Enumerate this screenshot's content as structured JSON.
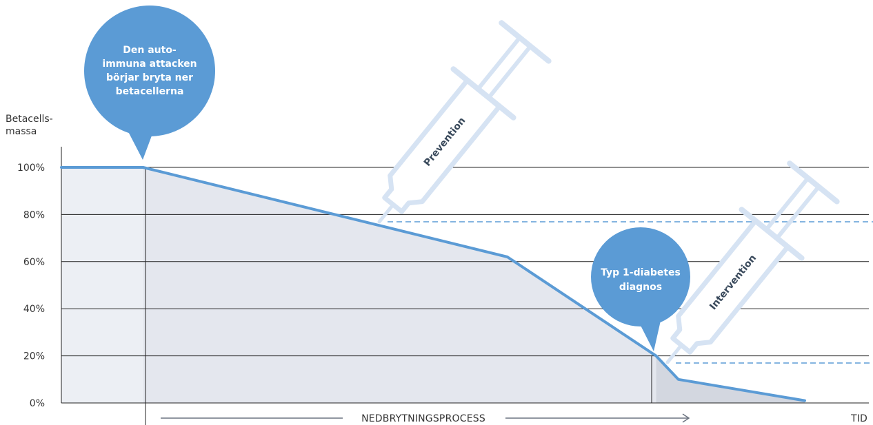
{
  "y_axis": {
    "title_line1": "Betacells-",
    "title_line2": "massa",
    "ticks": [
      "100%",
      "80%",
      "60%",
      "40%",
      "20%",
      "0%"
    ]
  },
  "x_axis": {
    "process_label": "NEDBRYTNINGSPROCESS",
    "end_label": "TID"
  },
  "bubbles": {
    "attack": {
      "line1": "Den auto-",
      "line2": "immuna attacken",
      "line3": "börjar bryta ner",
      "line4": "betacellerna"
    },
    "diagnosis": {
      "line1": "Typ 1-diabetes",
      "line2": "diagnos"
    }
  },
  "syringes": {
    "prevention": "Prevention",
    "intervention": "Intervention"
  },
  "colors": {
    "line": "#5b9bd5",
    "fill": "#e4e7ee",
    "fill_dark": "#d3d7e0",
    "bubble": "#5b9bd5",
    "syringe": "#d6e3f3",
    "dashed": "#5b9bd5"
  },
  "chart_data": {
    "type": "area",
    "y_unit": "%",
    "ylim": [
      0,
      100
    ],
    "yticks": [
      0,
      20,
      40,
      60,
      80,
      100
    ],
    "series": [
      {
        "points": [
          {
            "t": 0,
            "y": 100
          },
          {
            "t": 0.11,
            "y": 100
          },
          {
            "t": 0.6,
            "y": 62
          },
          {
            "t": 0.8,
            "y": 20
          },
          {
            "t": 0.83,
            "y": 10
          },
          {
            "t": 1.0,
            "y": 1
          }
        ]
      }
    ],
    "thresholds": [
      78,
      17
    ]
  }
}
